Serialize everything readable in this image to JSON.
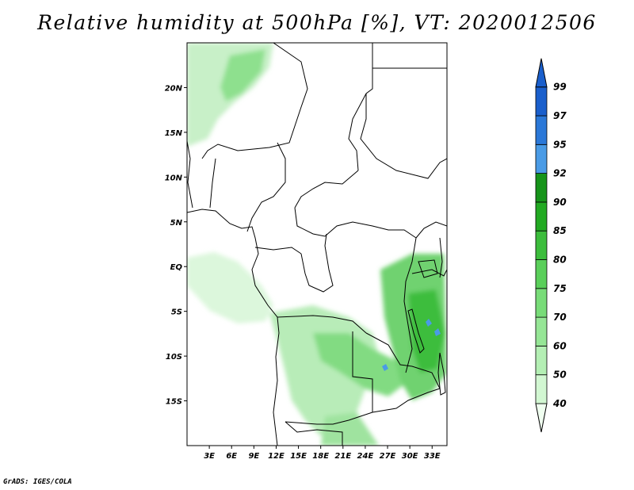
{
  "title": "Relative humidity at 500hPa [%], VT: 2020012506",
  "credit": "GrADS: IGES/COLA",
  "map": {
    "lon_range": [
      0,
      35
    ],
    "lat_range": [
      -20,
      25
    ],
    "lon_ticks": [
      "3E",
      "6E",
      "9E",
      "12E",
      "15E",
      "18E",
      "21E",
      "24E",
      "27E",
      "30E",
      "33E"
    ],
    "lat_ticks": [
      "20N",
      "15N",
      "10N",
      "5N",
      "EQ",
      "5S",
      "10S",
      "15S"
    ]
  },
  "colorbar": {
    "labels": [
      "40",
      "50",
      "60",
      "70",
      "75",
      "80",
      "85",
      "90",
      "92",
      "95",
      "97",
      "99"
    ],
    "colors": [
      "#f0fff0",
      "#d2f7d2",
      "#b4efb4",
      "#96e696",
      "#78dc78",
      "#5acf5a",
      "#3cbd3c",
      "#22aa22",
      "#16941a",
      "#4a9be6",
      "#2b78d8",
      "#1a5fcc"
    ]
  }
}
